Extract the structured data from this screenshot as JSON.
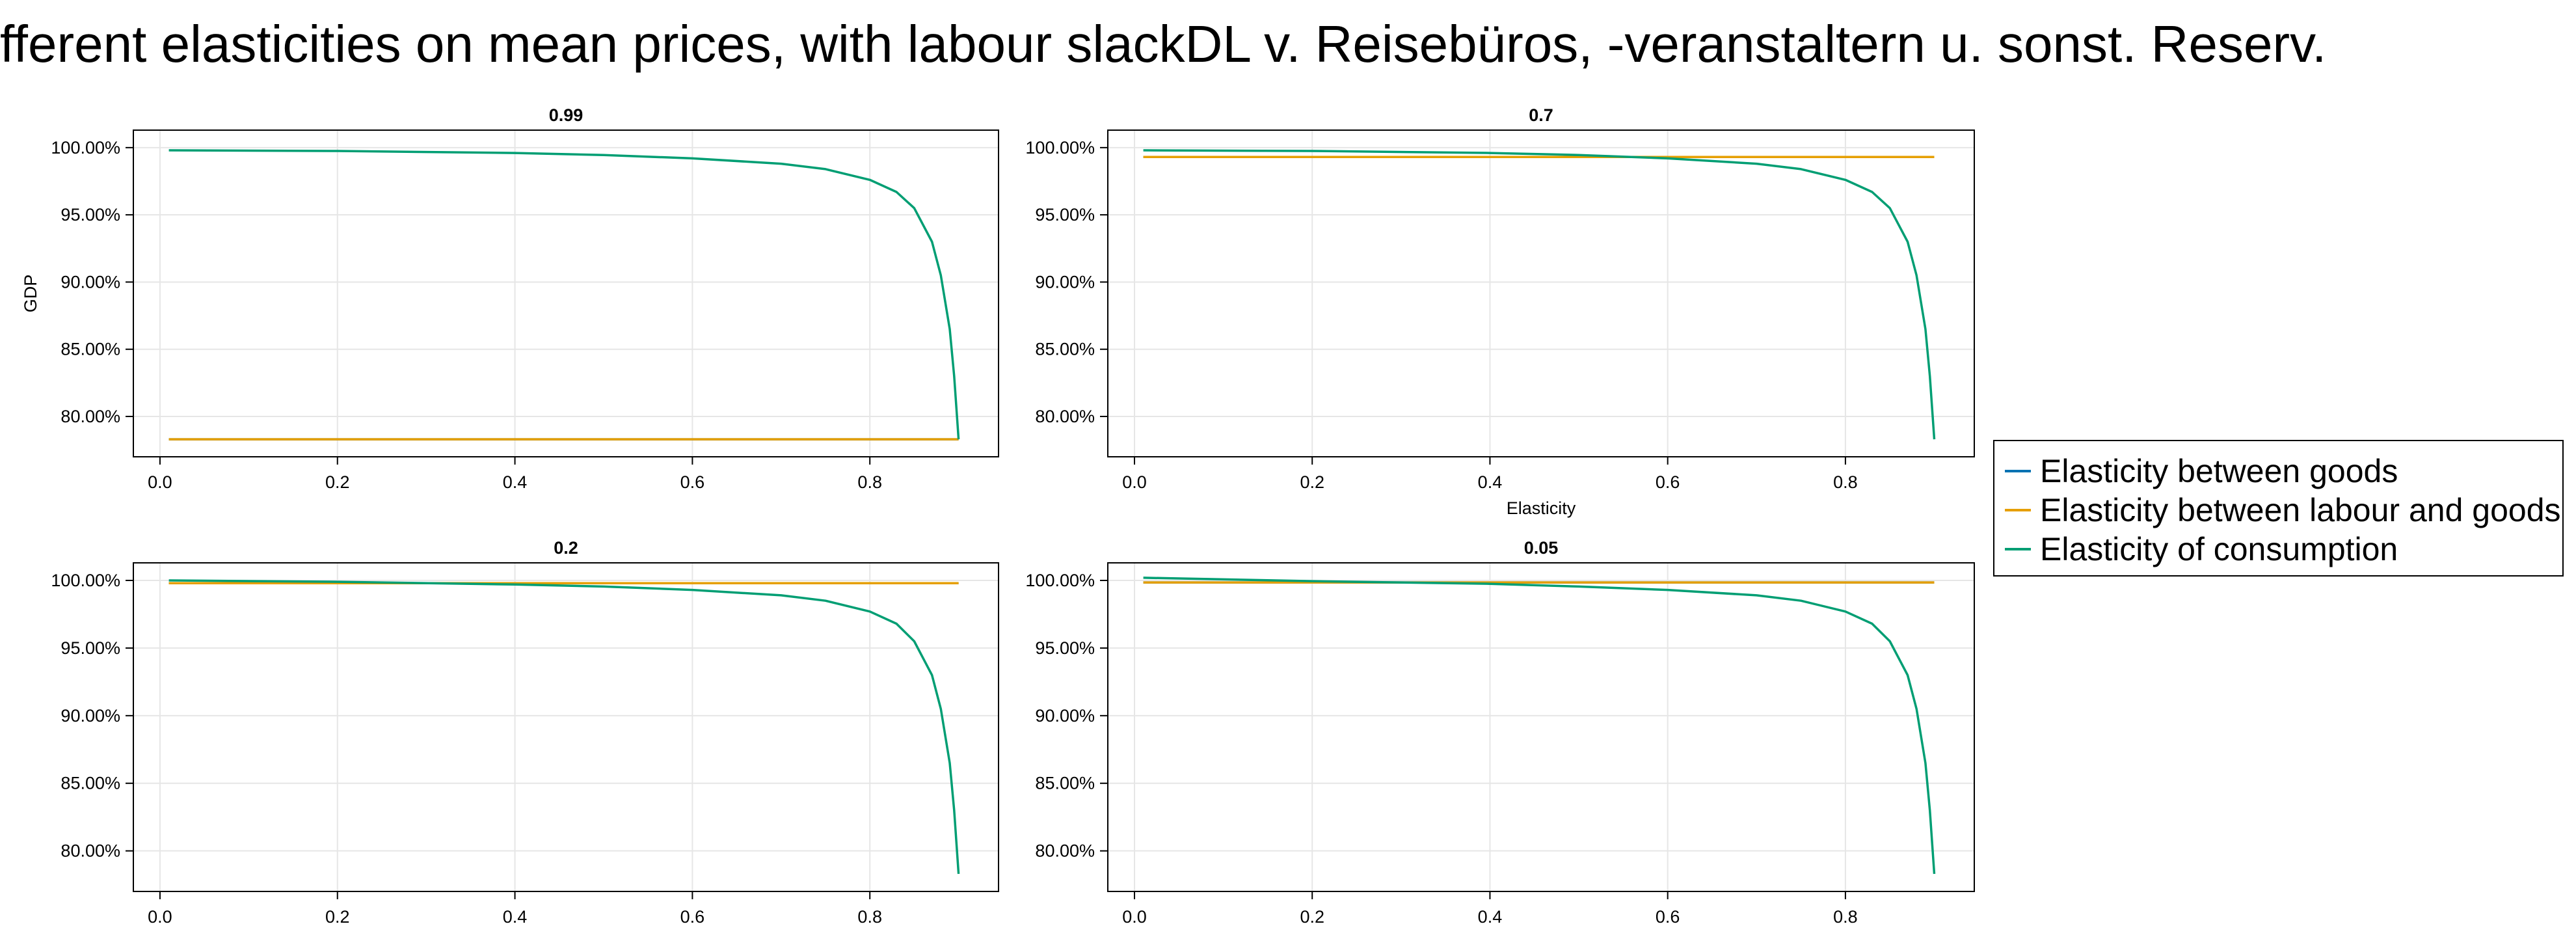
{
  "title": "fferent elasticities on mean prices, with labour slackDL v. Reisebüros, -veranstaltern u. sonst. Reserv.",
  "colors": {
    "elasticity_between_goods": "#0072B2",
    "elasticity_between_labour_and_goods": "#E69F00",
    "elasticity_of_consumption": "#009E73"
  },
  "legend": {
    "items": [
      {
        "label": "Elasticity between goods",
        "color": "#0072B2"
      },
      {
        "label": "Elasticity between labour and goods",
        "color": "#E69F00"
      },
      {
        "label": "Elasticity of consumption",
        "color": "#009E73"
      }
    ]
  },
  "chart_data": [
    {
      "type": "line",
      "title": "0.99",
      "ylabel": "GDP",
      "xlabel": "",
      "xlim": [
        -0.03,
        0.945
      ],
      "ylim": [
        77.0,
        101.3
      ],
      "xticks": [
        0.0,
        0.2,
        0.4,
        0.6,
        0.8
      ],
      "xtick_labels": [
        "0.0",
        "0.2",
        "0.4",
        "0.6",
        "0.8"
      ],
      "yticks": [
        80,
        85,
        90,
        95,
        100
      ],
      "ytick_labels": [
        "80.00%",
        "85.00%",
        "90.00%",
        "95.00%",
        "100.00%"
      ],
      "grid": true,
      "series": [
        {
          "name": "Elasticity between goods",
          "color": "#0072B2",
          "x": [
            0.01,
            0.9
          ],
          "y": [
            78.3,
            78.3
          ]
        },
        {
          "name": "Elasticity between labour and goods",
          "color": "#E69F00",
          "x": [
            0.01,
            0.9
          ],
          "y": [
            78.3,
            78.3
          ]
        },
        {
          "name": "Elasticity of consumption",
          "color": "#009E73",
          "x": [
            0.01,
            0.2,
            0.4,
            0.5,
            0.6,
            0.7,
            0.75,
            0.8,
            0.83,
            0.85,
            0.87,
            0.88,
            0.89,
            0.895,
            0.9
          ],
          "y": [
            99.8,
            99.75,
            99.6,
            99.45,
            99.2,
            98.8,
            98.4,
            97.6,
            96.7,
            95.5,
            93.0,
            90.5,
            86.5,
            83.0,
            78.3
          ]
        }
      ]
    },
    {
      "type": "line",
      "title": "0.7",
      "ylabel": "",
      "xlabel": "Elasticity",
      "xlim": [
        -0.03,
        0.945
      ],
      "ylim": [
        77.0,
        101.3
      ],
      "xticks": [
        0.0,
        0.2,
        0.4,
        0.6,
        0.8
      ],
      "xtick_labels": [
        "0.0",
        "0.2",
        "0.4",
        "0.6",
        "0.8"
      ],
      "yticks": [
        80,
        85,
        90,
        95,
        100
      ],
      "ytick_labels": [
        "80.00%",
        "85.00%",
        "90.00%",
        "95.00%",
        "100.00%"
      ],
      "grid": true,
      "series": [
        {
          "name": "Elasticity between goods",
          "color": "#0072B2",
          "x": [
            0.01,
            0.9
          ],
          "y": [
            99.3,
            99.3
          ]
        },
        {
          "name": "Elasticity between labour and goods",
          "color": "#E69F00",
          "x": [
            0.01,
            0.9
          ],
          "y": [
            99.3,
            99.3
          ]
        },
        {
          "name": "Elasticity of consumption",
          "color": "#009E73",
          "x": [
            0.01,
            0.2,
            0.4,
            0.5,
            0.6,
            0.7,
            0.75,
            0.8,
            0.83,
            0.85,
            0.87,
            0.88,
            0.89,
            0.895,
            0.9
          ],
          "y": [
            99.8,
            99.75,
            99.6,
            99.45,
            99.2,
            98.8,
            98.4,
            97.6,
            96.7,
            95.5,
            93.0,
            90.5,
            86.5,
            83.0,
            78.3
          ]
        }
      ]
    },
    {
      "type": "line",
      "title": "0.2",
      "ylabel": "",
      "xlabel": "",
      "xlim": [
        -0.03,
        0.945
      ],
      "ylim": [
        77.0,
        101.3
      ],
      "xticks": [
        0.0,
        0.2,
        0.4,
        0.6,
        0.8
      ],
      "xtick_labels": [
        "0.0",
        "0.2",
        "0.4",
        "0.6",
        "0.8"
      ],
      "yticks": [
        80,
        85,
        90,
        95,
        100
      ],
      "ytick_labels": [
        "80.00%",
        "85.00%",
        "90.00%",
        "95.00%",
        "100.00%"
      ],
      "grid": true,
      "series": [
        {
          "name": "Elasticity between goods",
          "color": "#0072B2",
          "x": [
            0.01,
            0.9
          ],
          "y": [
            99.8,
            99.8
          ]
        },
        {
          "name": "Elasticity between labour and goods",
          "color": "#E69F00",
          "x": [
            0.01,
            0.9
          ],
          "y": [
            99.8,
            99.8
          ]
        },
        {
          "name": "Elasticity of consumption",
          "color": "#009E73",
          "x": [
            0.01,
            0.2,
            0.4,
            0.5,
            0.6,
            0.7,
            0.75,
            0.8,
            0.83,
            0.85,
            0.87,
            0.88,
            0.89,
            0.895,
            0.9
          ],
          "y": [
            100.0,
            99.9,
            99.7,
            99.55,
            99.3,
            98.9,
            98.5,
            97.7,
            96.8,
            95.5,
            93.0,
            90.5,
            86.5,
            83.0,
            78.3
          ]
        }
      ]
    },
    {
      "type": "line",
      "title": "0.05",
      "ylabel": "",
      "xlabel": "",
      "xlim": [
        -0.03,
        0.945
      ],
      "ylim": [
        77.0,
        101.3
      ],
      "xticks": [
        0.0,
        0.2,
        0.4,
        0.6,
        0.8
      ],
      "xtick_labels": [
        "0.0",
        "0.2",
        "0.4",
        "0.6",
        "0.8"
      ],
      "yticks": [
        80,
        85,
        90,
        95,
        100
      ],
      "ytick_labels": [
        "80.00%",
        "85.00%",
        "90.00%",
        "95.00%",
        "100.00%"
      ],
      "grid": true,
      "series": [
        {
          "name": "Elasticity between goods",
          "color": "#0072B2",
          "x": [
            0.01,
            0.9
          ],
          "y": [
            99.85,
            99.85
          ]
        },
        {
          "name": "Elasticity between labour and goods",
          "color": "#E69F00",
          "x": [
            0.01,
            0.9
          ],
          "y": [
            99.85,
            99.85
          ]
        },
        {
          "name": "Elasticity of consumption",
          "color": "#009E73",
          "x": [
            0.01,
            0.2,
            0.4,
            0.5,
            0.6,
            0.7,
            0.75,
            0.8,
            0.83,
            0.85,
            0.87,
            0.88,
            0.89,
            0.895,
            0.9
          ],
          "y": [
            100.2,
            99.95,
            99.75,
            99.55,
            99.3,
            98.9,
            98.5,
            97.7,
            96.8,
            95.5,
            93.0,
            90.5,
            86.5,
            83.0,
            78.3
          ]
        }
      ]
    }
  ]
}
